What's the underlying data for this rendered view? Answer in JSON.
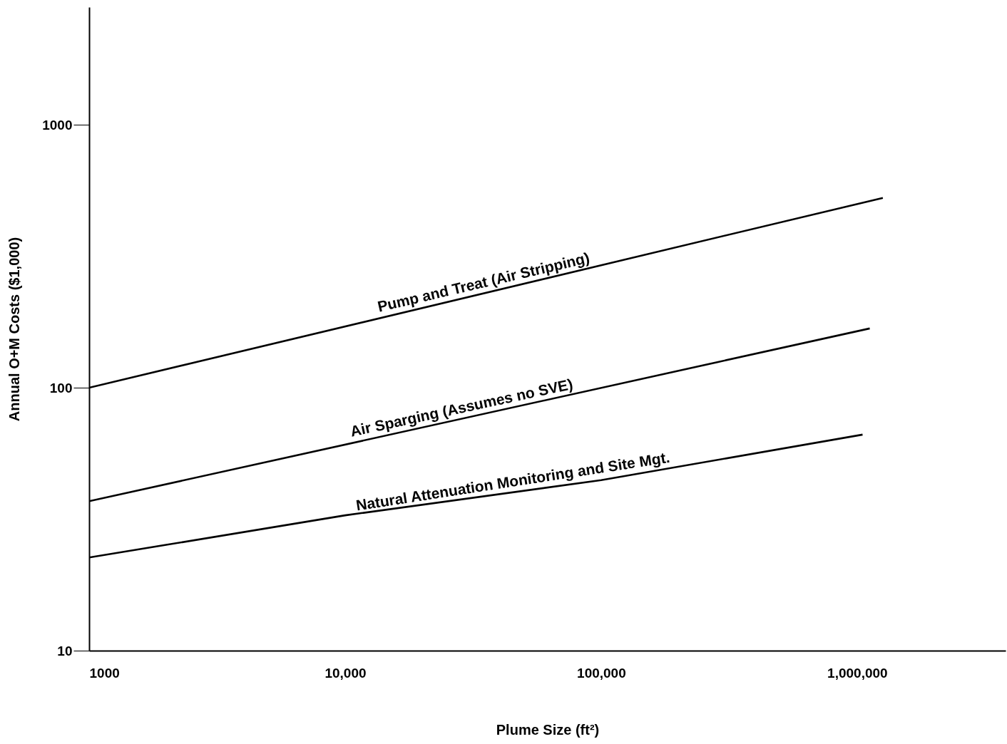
{
  "chart_data": {
    "type": "line",
    "xlabel": "Plume Size (ft²)",
    "ylabel": "Annual O+M Costs ($1,000)",
    "log": "xy",
    "grid": false,
    "marker": "none",
    "line_style": "solid",
    "xlim": [
      1000,
      3800000
    ],
    "ylim": [
      10,
      2800
    ],
    "xticks": [
      1000,
      {
        "value": 10000,
        "label": "10,000"
      },
      {
        "value": 100000,
        "label": "100,000"
      },
      {
        "value": 1000000,
        "label": "1,000,000"
      }
    ],
    "yticks": [
      10,
      100,
      1000
    ],
    "series": [
      {
        "name": "Pump and Treat (Air Stripping)",
        "color": "#000000",
        "x": [
          1000,
          1260000
        ],
        "values": [
          100,
          527
        ]
      },
      {
        "name": "Air Sparging (Assumes no SVE)",
        "color": "#000000",
        "x": [
          1000,
          1120000
        ],
        "values": [
          37,
          168
        ]
      },
      {
        "name": "Natural Attenuation Monitoring and Site Mgt.",
        "color": "#000000",
        "x": [
          1000,
          10000,
          100000,
          1050000
        ],
        "values": [
          22.6,
          32.7,
          44.5,
          66.3
        ]
      }
    ]
  }
}
